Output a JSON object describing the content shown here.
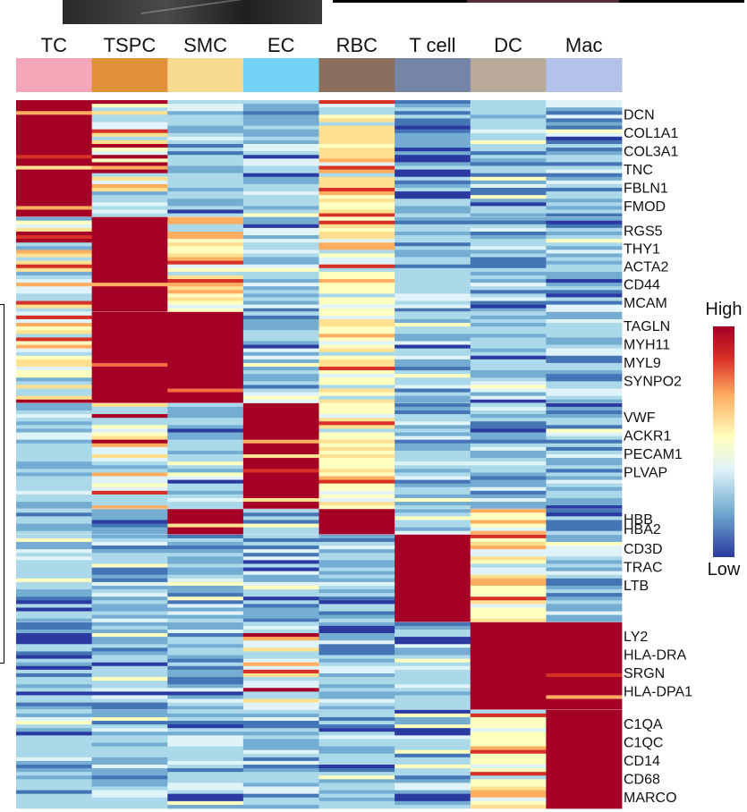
{
  "chart_data": {
    "type": "heatmap",
    "title": "",
    "clusters": [
      {
        "label": "TC",
        "color": "#f4a7b9"
      },
      {
        "label": "TSPC",
        "color": "#e0913a"
      },
      {
        "label": "SMC",
        "color": "#f7d98f"
      },
      {
        "label": "EC",
        "color": "#73d3f7"
      },
      {
        "label": "RBC",
        "color": "#8c6e5e"
      },
      {
        "label": "T cell",
        "color": "#7585a8"
      },
      {
        "label": "DC",
        "color": "#b8a99b"
      },
      {
        "label": "Mac",
        "color": "#b4c2ea"
      }
    ],
    "gene_groups": [
      {
        "cluster": "TC",
        "genes": [
          "DCN",
          "COL1A1",
          "COL3A1",
          "TNC",
          "FBLN1",
          "FMOD"
        ]
      },
      {
        "cluster": "TSPC",
        "genes": [
          "RGS5",
          "THY1",
          "ACTA2",
          "CD44",
          "MCAM"
        ]
      },
      {
        "cluster": "SMC",
        "genes": [
          "TAGLN",
          "MYH11",
          "MYL9",
          "SYNPO2"
        ]
      },
      {
        "cluster": "EC",
        "genes": [
          "VWF",
          "ACKR1",
          "PECAM1",
          "PLVAP"
        ]
      },
      {
        "cluster": "RBC",
        "genes": [
          "HBB",
          "HBA2"
        ]
      },
      {
        "cluster": "T cell",
        "genes": [
          "CD3D",
          "TRAC",
          "LTB"
        ]
      },
      {
        "cluster": "DC",
        "genes": [
          "LY2",
          "HLA-DRA",
          "SRGN",
          "HLA-DPA1"
        ]
      },
      {
        "cluster": "Mac",
        "genes": [
          "C1QA",
          "C1QC",
          "CD14",
          "CD68",
          "MARCO"
        ]
      }
    ],
    "block_rows": [
      32,
      26,
      25,
      29,
      7,
      24,
      24,
      27
    ],
    "cell_patterns": [
      [
        "H",
        "M",
        "L",
        "L",
        "W",
        "D",
        "L",
        "L"
      ],
      [
        "M",
        "H",
        "W",
        "L",
        "W",
        "L",
        "L",
        "L"
      ],
      [
        "M",
        "H",
        "H",
        "L",
        "W",
        "L",
        "L",
        "L"
      ],
      [
        "L",
        "M",
        "L",
        "H",
        "W",
        "L",
        "L",
        "L"
      ],
      [
        "L",
        "D",
        "H",
        "L",
        "H",
        "L",
        "W",
        "D"
      ],
      [
        "L",
        "L",
        "L",
        "L",
        "L",
        "H",
        "W",
        "L"
      ],
      [
        "D",
        "L",
        "L",
        "M",
        "L",
        "L",
        "H",
        "H"
      ],
      [
        "L",
        "L",
        "L",
        "L",
        "L",
        "L",
        "W",
        "H"
      ]
    ],
    "color_scale": {
      "low": "#2b3aa0",
      "mid": "#ffffbf",
      "high": "#a50026",
      "stops": [
        "#2b3aa0",
        "#4575b4",
        "#74add1",
        "#abd9e9",
        "#e0f3f8",
        "#ffffbf",
        "#fee090",
        "#fdae61",
        "#f46d43",
        "#d73027",
        "#a50026"
      ]
    },
    "legend": {
      "high_label": "High",
      "low_label": "Low",
      "position": "right"
    }
  }
}
